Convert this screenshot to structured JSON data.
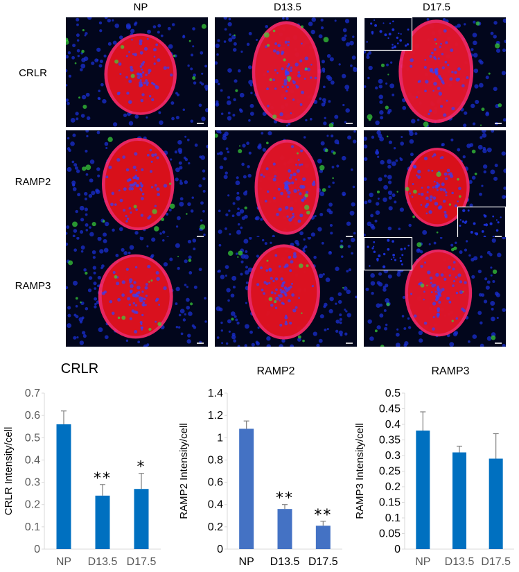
{
  "figure": {
    "columns": [
      "NP",
      "D13.5",
      "D17.5"
    ],
    "rows": [
      "CRLR",
      "RAMP2",
      "RAMP3"
    ]
  },
  "colors": {
    "bar_crlr": "#0070c0",
    "bar_ramp2": "#4472c4",
    "bar_ramp3": "#0070c0",
    "error": "#7f7f7f",
    "axis": "#d9d9d9",
    "tick_text_grey": "#595959",
    "tick_text_black": "#000000"
  },
  "chart_data": [
    {
      "type": "bar",
      "title": "CRLR",
      "ylabel": "CRLR Intensity/cell",
      "xlabel": "",
      "categories": [
        "NP",
        "D13.5",
        "D17.5"
      ],
      "values": [
        0.56,
        0.24,
        0.27
      ],
      "errors": [
        0.06,
        0.05,
        0.07
      ],
      "annotations": [
        "",
        "**",
        "*"
      ],
      "ylim": [
        0,
        0.7
      ],
      "yticks": [
        "0",
        "0.1",
        "0.2",
        "0.3",
        "0.4",
        "0.5",
        "0.6",
        "0.7"
      ],
      "grid": false,
      "legend": "none"
    },
    {
      "type": "bar",
      "title": "RAMP2",
      "ylabel": "RAMP2 Intensity/cell",
      "xlabel": "",
      "categories": [
        "NP",
        "D13.5",
        "D17.5"
      ],
      "values": [
        1.08,
        0.36,
        0.21
      ],
      "errors": [
        0.07,
        0.04,
        0.04
      ],
      "annotations": [
        "",
        "**",
        "**"
      ],
      "ylim": [
        0,
        1.4
      ],
      "yticks": [
        "0",
        "0.2",
        "0.4",
        "0.6",
        "0.8",
        "1",
        "1.2",
        "1.4"
      ],
      "grid": false,
      "legend": "none"
    },
    {
      "type": "bar",
      "title": "RAMP3",
      "ylabel": "RAMP3 Intensity/cell",
      "xlabel": "",
      "categories": [
        "NP",
        "D13.5",
        "D17.5"
      ],
      "values": [
        0.38,
        0.31,
        0.29
      ],
      "errors": [
        0.06,
        0.02,
        0.08
      ],
      "annotations": [
        "",
        "",
        ""
      ],
      "ylim": [
        0,
        0.5
      ],
      "yticks": [
        "0",
        "0.05",
        "0.1",
        "0.15",
        "0.2",
        "0.25",
        "0.3",
        "0.35",
        "0.4",
        "0.45",
        "0.5"
      ],
      "grid": false,
      "legend": "none"
    }
  ]
}
